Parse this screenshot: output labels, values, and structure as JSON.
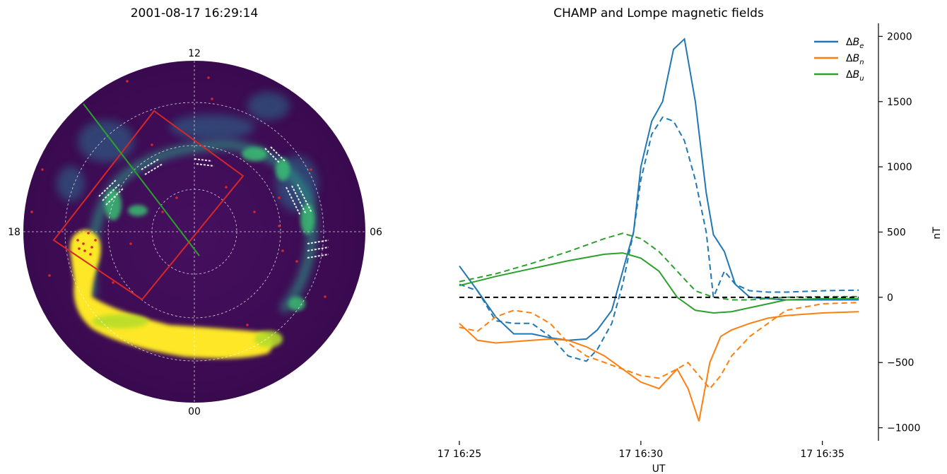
{
  "figure": {
    "left_panel": {
      "title": "2001-08-17 16:29:14",
      "mlt_labels": {
        "top": "12",
        "left": "18",
        "right": "06",
        "bottom": "00"
      }
    },
    "right_panel": {
      "title": "CHAMP and Lompe magnetic fields",
      "xlabel": "UT",
      "ylabel": "nT"
    }
  },
  "colors": {
    "blue": "#1f77b4",
    "orange": "#ff7f0e",
    "green": "#2ca02c",
    "red": "#d62728",
    "viridis_dark": "#440154",
    "viridis_yellow": "#fde725"
  },
  "chart_data": [
    {
      "type": "heatmap",
      "projection": "polar (MLT / magnetic latitude)",
      "title": "2001-08-17 16:29:14",
      "mlt_ticks": [
        "12",
        "18",
        "06",
        "00"
      ],
      "colormap": "viridis",
      "grid": true,
      "overlays": [
        "red rectangle (Lompe analysis region)",
        "green line (CHAMP track)",
        "red dots",
        "white dashed arrows"
      ]
    },
    {
      "type": "line",
      "title": "CHAMP and Lompe magnetic fields",
      "xlabel": "UT",
      "ylabel": "nT",
      "x_ticks": [
        "17 16:25",
        "17 16:30",
        "17 16:35"
      ],
      "x_range_min": [
        0,
        11
      ],
      "y_ticks": [
        -1000,
        -500,
        0,
        500,
        1000,
        1500,
        2000
      ],
      "ylim": [
        -1100,
        2100
      ],
      "legend_position": "top-right",
      "legend": [
        "ΔB_e",
        "ΔB_n",
        "ΔB_u"
      ],
      "reference_line": {
        "y": 0,
        "style": "black dashed"
      },
      "series": [
        {
          "name": "ΔB_e",
          "style": "solid",
          "color": "#1f77b4",
          "x": [
            0,
            0.5,
            1,
            1.5,
            2,
            2.5,
            3,
            3.5,
            3.8,
            4.2,
            4.5,
            4.8,
            5.0,
            5.3,
            5.6,
            5.9,
            6.2,
            6.5,
            6.8,
            7.0,
            7.3,
            7.6,
            8.0,
            8.5,
            9,
            10,
            11
          ],
          "y": [
            240,
            50,
            -150,
            -280,
            -280,
            -310,
            -330,
            -320,
            -250,
            -100,
            200,
            500,
            1000,
            1350,
            1500,
            1900,
            1980,
            1500,
            800,
            480,
            350,
            100,
            0,
            -10,
            -20,
            -20,
            -20
          ]
        },
        {
          "name": "ΔB_e (Lompe)",
          "style": "dashed",
          "color": "#1f77b4",
          "x": [
            0,
            0.5,
            1,
            1.5,
            2,
            2.5,
            3,
            3.5,
            3.8,
            4.2,
            4.5,
            4.8,
            5.0,
            5.3,
            5.6,
            5.9,
            6.2,
            6.5,
            6.8,
            7.0,
            7.3,
            7.6,
            8.0,
            8.5,
            9,
            10,
            11
          ],
          "y": [
            100,
            50,
            -180,
            -200,
            -200,
            -300,
            -450,
            -490,
            -400,
            -200,
            100,
            500,
            900,
            1250,
            1380,
            1350,
            1200,
            900,
            500,
            0,
            200,
            100,
            50,
            40,
            40,
            50,
            55
          ]
        },
        {
          "name": "ΔB_n",
          "style": "solid",
          "color": "#ff7f0e",
          "x": [
            0,
            0.5,
            1,
            1.5,
            2,
            2.5,
            3,
            3.5,
            4,
            4.5,
            5,
            5.5,
            6,
            6.3,
            6.6,
            6.9,
            7.2,
            7.5,
            8,
            8.5,
            9,
            10,
            11
          ],
          "y": [
            -200,
            -330,
            -350,
            -340,
            -330,
            -320,
            -330,
            -380,
            -450,
            -550,
            -650,
            -700,
            -550,
            -700,
            -950,
            -500,
            -300,
            -250,
            -200,
            -160,
            -140,
            -120,
            -110
          ]
        },
        {
          "name": "ΔB_n (Lompe)",
          "style": "dashed",
          "color": "#ff7f0e",
          "x": [
            0,
            0.5,
            1,
            1.5,
            2,
            2.5,
            3,
            3.5,
            4,
            4.5,
            5,
            5.5,
            6,
            6.3,
            6.6,
            6.9,
            7.2,
            7.5,
            8,
            8.5,
            9,
            10,
            11
          ],
          "y": [
            -230,
            -260,
            -150,
            -100,
            -120,
            -200,
            -350,
            -450,
            -500,
            -550,
            -600,
            -620,
            -550,
            -500,
            -600,
            -700,
            -600,
            -450,
            -300,
            -200,
            -100,
            -50,
            -40
          ]
        },
        {
          "name": "ΔB_u",
          "style": "solid",
          "color": "#2ca02c",
          "x": [
            0,
            1,
            2,
            3,
            4,
            4.5,
            5,
            5.5,
            6,
            6.5,
            7,
            7.5,
            8,
            8.5,
            9,
            10,
            11
          ],
          "y": [
            90,
            160,
            220,
            280,
            330,
            340,
            300,
            200,
            0,
            -100,
            -120,
            -110,
            -80,
            -50,
            -20,
            -10,
            -10
          ]
        },
        {
          "name": "ΔB_u (Lompe)",
          "style": "dashed",
          "color": "#2ca02c",
          "x": [
            0,
            1,
            2,
            3,
            4,
            4.5,
            5,
            5.5,
            6,
            6.5,
            7,
            7.5,
            8,
            8.5,
            9,
            10,
            11
          ],
          "y": [
            120,
            180,
            260,
            350,
            450,
            490,
            450,
            350,
            200,
            50,
            0,
            -20,
            -20,
            -10,
            0,
            5,
            5
          ]
        }
      ]
    }
  ]
}
